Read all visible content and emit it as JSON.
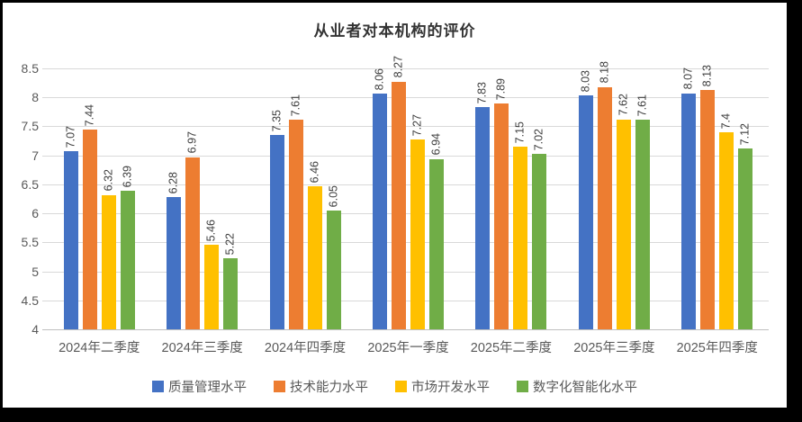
{
  "window": {
    "background": "#000000",
    "canvas_background": "#ffffff"
  },
  "chart_data": {
    "type": "bar",
    "title": "从业者对本机构的评价",
    "categories": [
      "2024年二季度",
      "2024年三季度",
      "2024年四季度",
      "2025年一季度",
      "2025年二季度",
      "2025年三季度",
      "2025年四季度"
    ],
    "series": [
      {
        "name": "质量管理水平",
        "color": "#4472C4",
        "values": [
          7.07,
          6.28,
          7.35,
          8.06,
          7.83,
          8.03,
          8.07
        ]
      },
      {
        "name": "技术能力水平",
        "color": "#ED7D31",
        "values": [
          7.44,
          6.97,
          7.61,
          8.27,
          7.89,
          8.18,
          8.13
        ]
      },
      {
        "name": "市场开发水平",
        "color": "#FFC000",
        "values": [
          6.32,
          5.46,
          6.46,
          7.27,
          7.15,
          7.62,
          7.4
        ]
      },
      {
        "name": "数字化智能化水平",
        "color": "#70AD47",
        "values": [
          6.39,
          5.22,
          6.05,
          6.94,
          7.02,
          7.61,
          7.12
        ]
      }
    ],
    "ylim": [
      4,
      8.5
    ],
    "ytick_step": 0.5,
    "yticks": [
      "8.5",
      "8",
      "7.5",
      "7",
      "6.5",
      "6",
      "5.5",
      "5",
      "4.5",
      "4"
    ],
    "grid": true,
    "gridline_color": "#D9D9D9",
    "axis_label_color": "#595959",
    "data_label_color": "#404040",
    "legend_position": "bottom",
    "data_labels_rotated": true
  }
}
